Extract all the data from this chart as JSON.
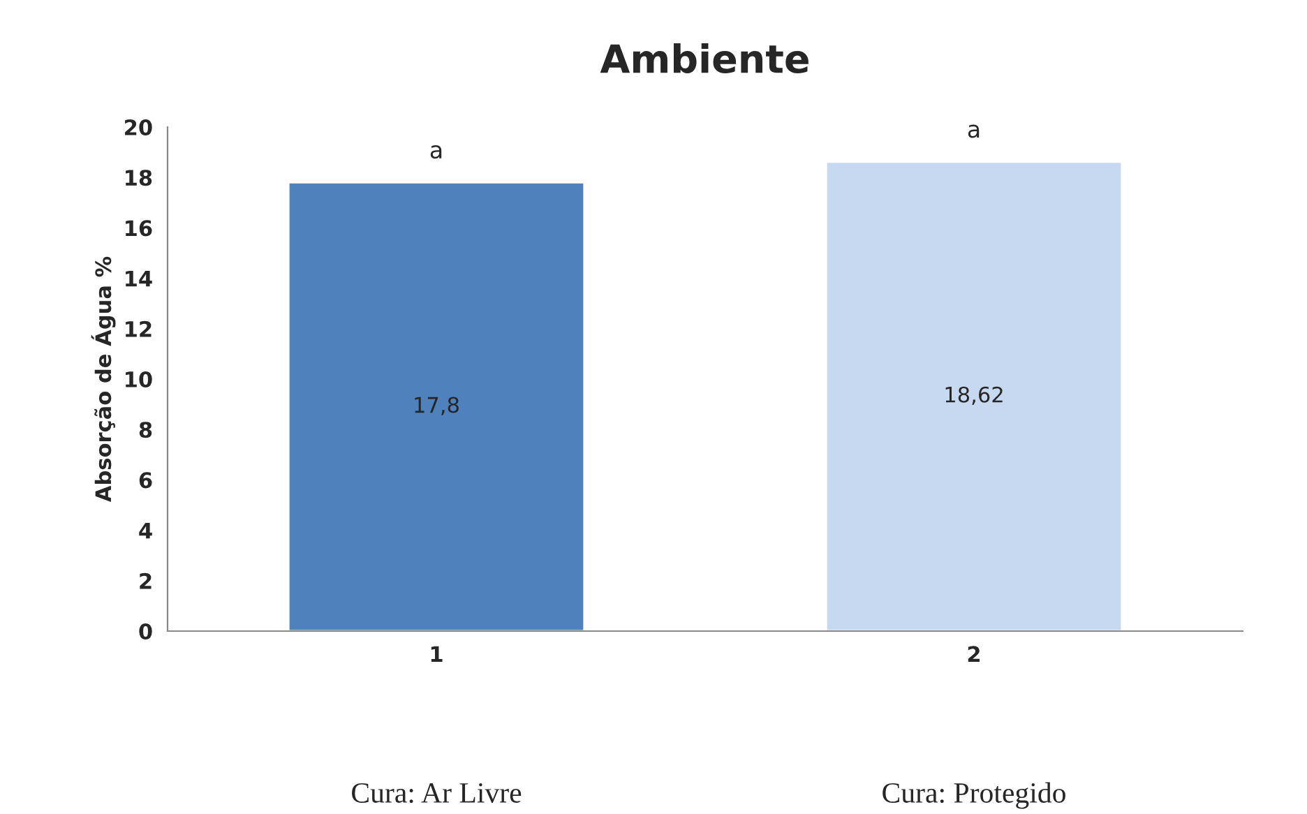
{
  "chart_data": {
    "type": "bar",
    "title": "Ambiente",
    "ylabel": "Absorção de Água %",
    "categories": [
      "1",
      "2"
    ],
    "values": [
      17.8,
      18.62
    ],
    "colors": [
      "#4f81bd",
      "#c6d9f1"
    ],
    "value_labels": [
      "17,8",
      "18,62"
    ],
    "ylim": [
      0,
      20
    ],
    "yticks": [
      0,
      2,
      4,
      6,
      8,
      10,
      12,
      14,
      16,
      18,
      20
    ],
    "grid": false,
    "legend": false,
    "annotations": [
      {
        "text": "a",
        "x": "1",
        "y": 17.8
      },
      {
        "text": "a",
        "x": "2",
        "y": 18.62
      },
      "Cura: Ar Livre",
      "Cura: Protegido"
    ]
  }
}
